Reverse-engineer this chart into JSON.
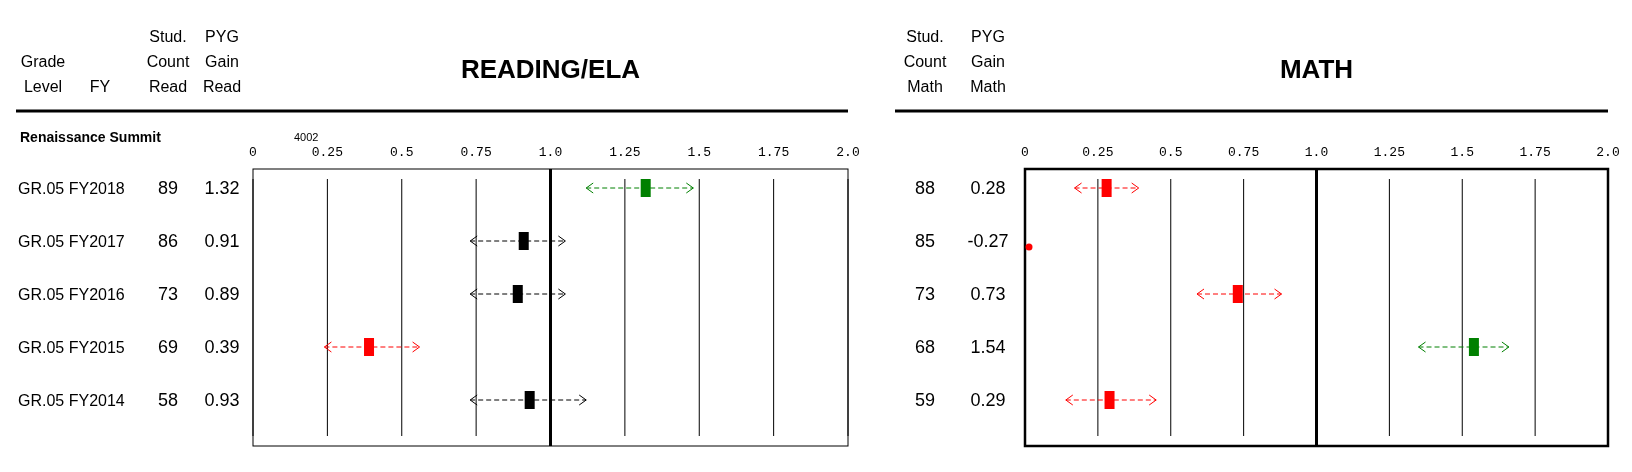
{
  "chart_data": [
    {
      "type": "other",
      "data_labels": true,
      "series": [
        {
          "name": "Stud. Count Read",
          "values": [
            89,
            86,
            73,
            69,
            58
          ]
        }
      ]
    },
    {
      "type": "scatter",
      "orientation": "horizontal",
      "title": "READING/ELA",
      "annotations": [
        "Renaissance Summit",
        "4002",
        "Grade Level",
        "FY"
      ],
      "categories": [
        "GR.05 FY2018",
        "GR.05 FY2017",
        "GR.05 FY2016",
        "GR.05 FY2015",
        "GR.05 FY2014"
      ],
      "series": [
        {
          "name": "PYG Gain Read",
          "values": [
            1.32,
            0.91,
            0.89,
            0.39,
            0.93
          ],
          "value_labels": [
            "1.32",
            "0.91",
            "0.89",
            "0.39",
            "0.93"
          ],
          "errors": [
            [
              1.12,
              1.48
            ],
            [
              0.73,
              1.05
            ],
            [
              0.73,
              1.05
            ],
            [
              0.24,
              0.56
            ],
            [
              0.73,
              1.12
            ]
          ],
          "colors": [
            "#008000",
            "#000000",
            "#000000",
            "#ff0000",
            "#000000"
          ]
        }
      ],
      "xlim": [
        0,
        2
      ],
      "xticks": [
        0,
        0.25,
        {
          "value": 0.5,
          "label": "0.5"
        },
        0.75,
        {
          "value": 1,
          "label": "1.0"
        },
        1.25,
        {
          "value": 1.5,
          "label": "1.5"
        },
        1.75,
        {
          "value": 2,
          "label": "2.0"
        }
      ],
      "grid": "x",
      "marker": "square",
      "line_style": "dashed",
      "ref_lines": [
        {
          "axis": "x",
          "value": 1,
          "color": "#000000"
        }
      ]
    },
    {
      "type": "other",
      "data_labels": true,
      "series": [
        {
          "name": "Stud. Count Math",
          "values": [
            88,
            85,
            73,
            68,
            59
          ]
        }
      ]
    },
    {
      "type": "scatter",
      "orientation": "horizontal",
      "title": "MATH",
      "tick_labels": "x",
      "categories": [
        null,
        null,
        null,
        null,
        null
      ],
      "series": [
        {
          "name": "PYG Gain Math",
          "values": [
            0.28,
            null,
            0.73,
            1.54,
            0.29
          ],
          "value_labels": [
            "0.28",
            "-0.27",
            "0.73",
            "1.54",
            "0.29"
          ],
          "errors": [
            [
              0.17,
              0.39
            ],
            null,
            [
              0.59,
              0.88
            ],
            [
              1.35,
              1.66
            ],
            [
              0.14,
              0.45
            ]
          ],
          "colors": [
            "#ff0000",
            "#ff0000",
            "#ff0000",
            "#008000",
            "#ff0000"
          ]
        }
      ],
      "xlim": [
        0,
        2
      ],
      "xticks": [
        0,
        0.25,
        {
          "value": 0.5,
          "label": "0.5"
        },
        0.75,
        {
          "value": 1,
          "label": "1.0"
        },
        1.25,
        {
          "value": 1.5,
          "label": "1.5"
        },
        1.75,
        {
          "value": 2,
          "label": "2.0"
        }
      ],
      "grid": "x",
      "marker": "square",
      "line_style": "dashed",
      "ref_lines": [
        {
          "axis": "x",
          "value": 1,
          "color": "#000000"
        }
      ]
    }
  ]
}
